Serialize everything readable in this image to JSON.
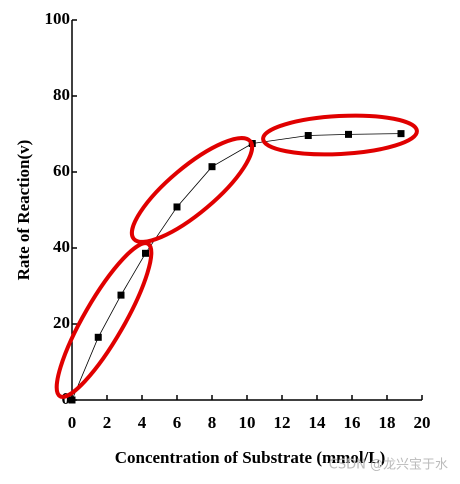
{
  "chart_data": {
    "type": "line",
    "x_label": "Concentration of Substrate (mmol/L)",
    "y_label": "Rate of Reaction(v)",
    "watermark": "CSDN @龙兴宝于水",
    "series": [
      {
        "color": "#000000",
        "x": [
          0,
          1.5,
          2.8,
          4.2,
          6,
          8,
          10.3,
          13.5,
          15.8,
          18.8
        ],
        "values": [
          0,
          16.5,
          27.6,
          38.6,
          50.8,
          61.4,
          67.5,
          69.6,
          69.9,
          70.1
        ]
      }
    ],
    "xlim": [
      0,
      20
    ],
    "xticks": [
      0,
      2,
      4,
      6,
      8,
      10,
      12,
      14,
      16,
      18,
      20
    ],
    "ylim": [
      0,
      100
    ],
    "yticks": [
      0,
      20,
      40,
      60,
      80,
      100
    ]
  }
}
